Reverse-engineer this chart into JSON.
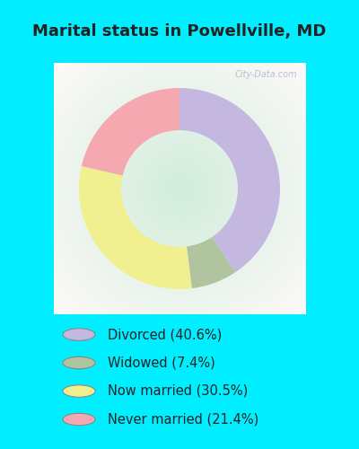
{
  "title": "Marital status in Powellville, MD",
  "slices": [
    40.6,
    7.4,
    30.5,
    21.4
  ],
  "labels": [
    "Divorced (40.6%)",
    "Widowed (7.4%)",
    "Now married (30.5%)",
    "Never married (21.4%)"
  ],
  "colors": [
    "#c5b8e0",
    "#b0c4a0",
    "#f0f090",
    "#f5a8b0"
  ],
  "outer_bg": "#00eeff",
  "chart_panel_bg": "#d0ead8",
  "title_color": "#222222",
  "title_fontsize": 13,
  "legend_fontsize": 10.5,
  "donut_width": 0.42,
  "start_angle": 90,
  "watermark": "City-Data.com"
}
